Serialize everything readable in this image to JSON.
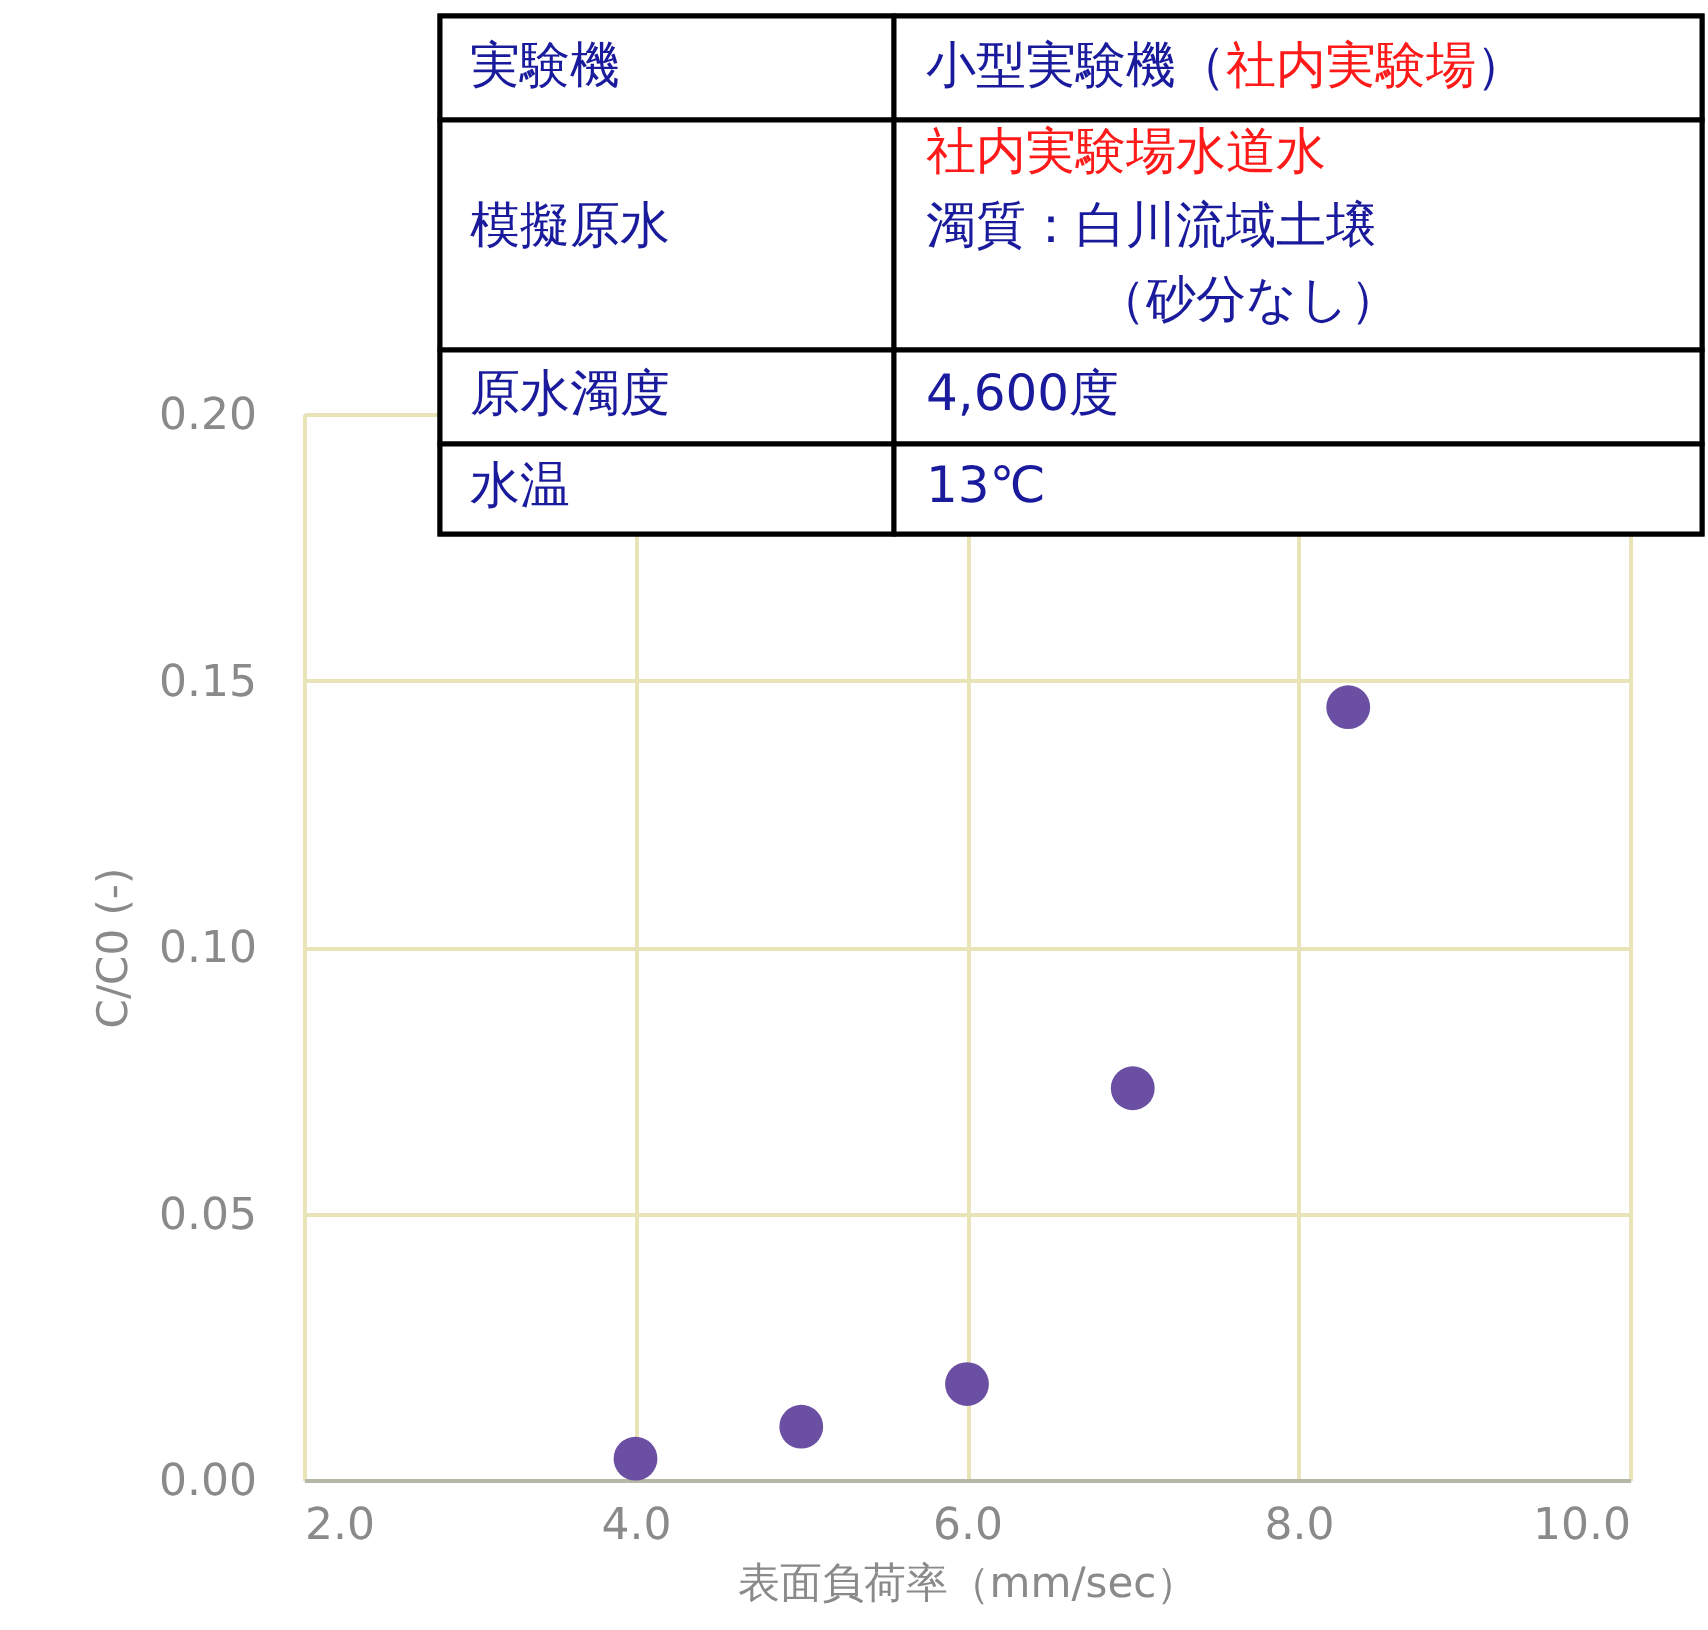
{
  "chart_data": {
    "type": "scatter",
    "xlabel": "表面負荷率（mm/sec）",
    "ylabel": "C/C0 (-)",
    "x": [
      4.0,
      5.0,
      6.0,
      7.0,
      8.3
    ],
    "series": [
      {
        "color": "#6a4fa3",
        "values": [
          0.004,
          0.01,
          0.018,
          0.0735,
          0.145
        ]
      }
    ],
    "xlim": [
      2.0,
      10.0
    ],
    "xticks": [
      {
        "value": 2,
        "label": "2.0"
      },
      {
        "value": 4,
        "label": "4.0"
      },
      {
        "value": 6,
        "label": "6.0"
      },
      {
        "value": 8,
        "label": "8.0"
      },
      {
        "value": 10,
        "label": "10.0"
      }
    ],
    "ylim": [
      0,
      0.2
    ],
    "yticks": [
      {
        "value": 0,
        "label": "0.00"
      },
      {
        "value": 0.05,
        "label": "0.05"
      },
      {
        "value": 0.1,
        "label": "0.10"
      },
      {
        "value": 0.15,
        "label": "0.15"
      },
      {
        "value": 0.2,
        "label": "0.20"
      }
    ],
    "grid": true,
    "marker": "circle",
    "annotations": [
      "実験機",
      "小型実験機（",
      "社内実験場",
      "）",
      "模擬原水",
      "社内実験場水道水",
      "濁質：白川流域土壌",
      "（砂分なし）",
      "原水濁度",
      "4,600度",
      "水温",
      "13℃"
    ]
  }
}
